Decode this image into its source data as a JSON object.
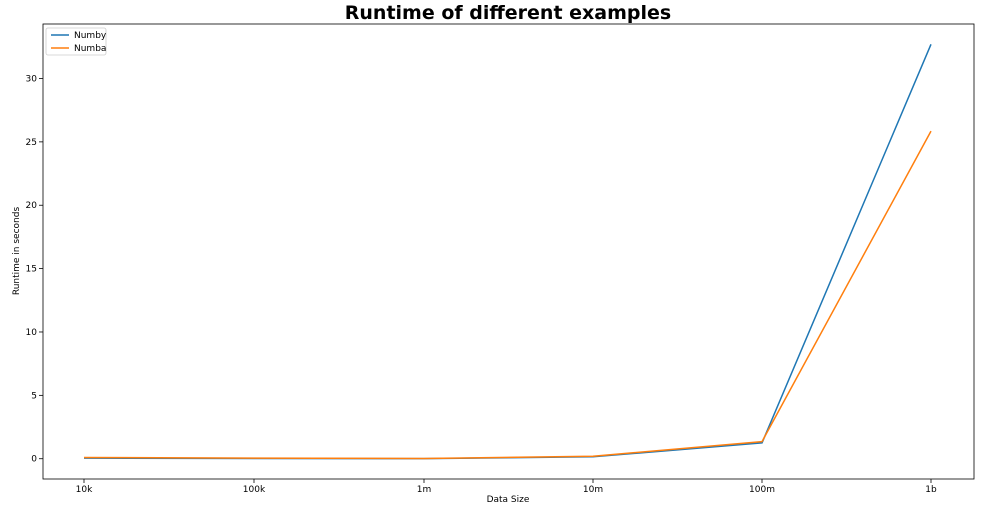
{
  "chart_data": {
    "type": "line",
    "title": "Runtime of different examples",
    "xlabel": "Data Size",
    "ylabel": "Runtime in seconds",
    "categories": [
      "10k",
      "100k",
      "1m",
      "10m",
      "100m",
      "1b"
    ],
    "ylim": [
      -1.6,
      34.3
    ],
    "yticks": [
      0,
      5,
      10,
      15,
      20,
      25,
      30
    ],
    "grid": false,
    "legend_position": "top-left",
    "series": [
      {
        "name": "Numby",
        "color": "#1f77b4",
        "values": [
          0.05,
          0.02,
          0.01,
          0.15,
          1.25,
          32.7
        ]
      },
      {
        "name": "Numba",
        "color": "#ff7f0e",
        "values": [
          0.1,
          0.05,
          0.02,
          0.2,
          1.35,
          25.85
        ]
      }
    ]
  }
}
